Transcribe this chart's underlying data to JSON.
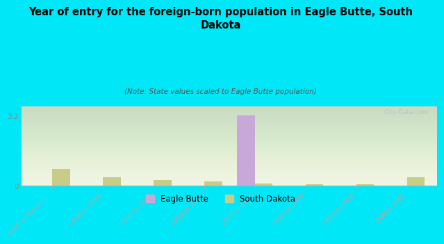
{
  "title": "Year of entry for the foreign-born population in Eagle Butte, South\nDakota",
  "subtitle": "(Note: State values scaled to Eagle Butte population)",
  "categories": [
    "1995 to March 2...",
    "1990 to 1994",
    "1985 to 1989",
    "1980 to 1984",
    "1975 to 1979",
    "1970 to 1974",
    "1965 to 1969",
    "Before 1965"
  ],
  "eagle_butte": [
    0,
    0,
    0,
    0,
    3.2,
    0,
    0,
    0
  ],
  "south_dakota": [
    0.75,
    0.38,
    0.25,
    0.2,
    0.1,
    0.07,
    0.07,
    0.38
  ],
  "eagle_butte_color": "#c8a8d8",
  "south_dakota_color": "#c8cc88",
  "bg_color": "#00e8f8",
  "plot_bg_top": "#f0f4e0",
  "plot_bg_bottom": "#d8edd8",
  "ylim": [
    0,
    3.6
  ],
  "ytick_val": 3.2,
  "bar_width": 0.35,
  "watermark": "City-Data.com",
  "tick_color": "#888888",
  "label_color": "#888888",
  "title_fontsize": 10.5,
  "subtitle_fontsize": 7.5
}
